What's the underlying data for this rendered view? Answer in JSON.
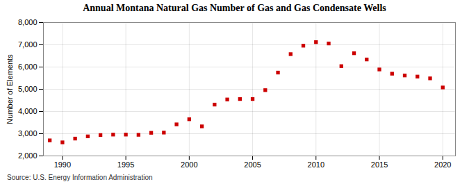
{
  "chart_data": {
    "type": "scatter",
    "title": "Annual Montana Natural Gas Number of Gas and Gas Condensate Wells",
    "ylabel": "Number of Elements",
    "source": "Source: U.S. Energy Information Administration",
    "x": [
      1989,
      1990,
      1991,
      1992,
      1993,
      1994,
      1995,
      1996,
      1997,
      1998,
      1999,
      2000,
      2001,
      2002,
      2003,
      2004,
      2005,
      2006,
      2007,
      2008,
      2009,
      2010,
      2011,
      2012,
      2013,
      2014,
      2015,
      2016,
      2017,
      2018,
      2019,
      2020
    ],
    "values": [
      2700,
      2610,
      2780,
      2880,
      2940,
      2960,
      2960,
      2950,
      3040,
      3050,
      3420,
      3650,
      3330,
      4310,
      4540,
      4560,
      4560,
      4960,
      5750,
      6580,
      6960,
      7120,
      7060,
      6040,
      6620,
      6340,
      5890,
      5700,
      5620,
      5570,
      5490,
      5080
    ],
    "color": "#cc0000",
    "marker": "square",
    "xlim": [
      1988.5,
      2021
    ],
    "ylim": [
      2000,
      8000
    ],
    "xticks": [
      1990,
      1995,
      2000,
      2005,
      2010,
      2015,
      2020
    ],
    "yticks": [
      {
        "value": 2000,
        "label": "2,000"
      },
      {
        "value": 3000,
        "label": "3,000"
      },
      {
        "value": 4000,
        "label": "4,000"
      },
      {
        "value": 5000,
        "label": "5,000"
      },
      {
        "value": 6000,
        "label": "6,000"
      },
      {
        "value": 7000,
        "label": "7,000"
      },
      {
        "value": 8000,
        "label": "8,000"
      }
    ],
    "grid": true
  }
}
